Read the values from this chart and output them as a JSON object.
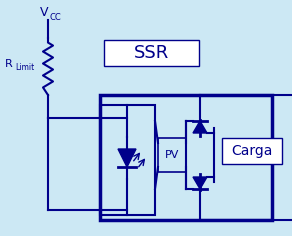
{
  "bg_color": "#cce8f4",
  "line_color": "#00008B",
  "box_line_color": "#000060",
  "white": "#ffffff",
  "ssr_label": "SSR",
  "carga_label": "Carga",
  "vcc_label": "V",
  "vcc_sub": "CC",
  "r_label": "R",
  "r_sub": "Limit",
  "pv_label": "PV",
  "fig_width": 2.92,
  "fig_height": 2.36,
  "dpi": 100
}
